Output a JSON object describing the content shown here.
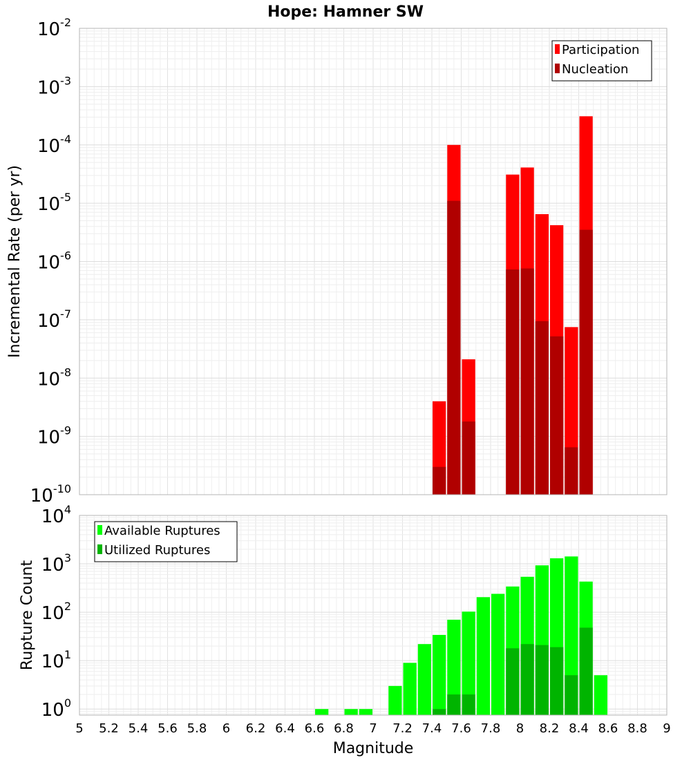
{
  "title": "Hope: Hamner SW",
  "xlabel": "Magnitude",
  "x_ticks": [
    "5",
    "5.2",
    "5.4",
    "5.6",
    "5.8",
    "6",
    "6.2",
    "6.4",
    "6.6",
    "6.8",
    "7",
    "7.2",
    "7.4",
    "7.6",
    "7.8",
    "8",
    "8.2",
    "8.4",
    "8.6",
    "8.8",
    "9"
  ],
  "chart_data": [
    {
      "type": "bar",
      "ylabel": "Incremental Rate (per yr)",
      "yscale": "log",
      "ylim": [
        1e-10,
        0.01
      ],
      "xlim": [
        5,
        9
      ],
      "y_tick_exponents": [
        "-10",
        "-9",
        "-8",
        "-7",
        "-6",
        "-5",
        "-4",
        "-3",
        "-2"
      ],
      "grid": true,
      "legend_position": "top-right",
      "bin_width": 0.1,
      "series": [
        {
          "name": "Participation",
          "color": "#ff0000",
          "x": [
            7.45,
            7.55,
            7.65,
            7.95,
            8.05,
            8.15,
            8.25,
            8.35,
            8.45
          ],
          "values": [
            4e-09,
            0.0001,
            2.1e-08,
            3.1e-05,
            4.1e-05,
            6.5e-06,
            4.2e-06,
            7.5e-08,
            0.00031
          ]
        },
        {
          "name": "Nucleation",
          "color": "#b00000",
          "x": [
            7.45,
            7.55,
            7.65,
            7.95,
            8.05,
            8.15,
            8.25,
            8.35,
            8.45
          ],
          "values": [
            3e-10,
            1.1e-05,
            1.8e-09,
            7.3e-07,
            7.6e-07,
            9.5e-08,
            5.2e-08,
            6.5e-10,
            3.5e-06
          ]
        }
      ]
    },
    {
      "type": "bar",
      "ylabel": "Rupture Count",
      "yscale": "log",
      "ylim": [
        0.75,
        10000
      ],
      "xlim": [
        5,
        9
      ],
      "y_tick_exponents": [
        "0",
        "1",
        "2",
        "3",
        "4"
      ],
      "grid": true,
      "legend_position": "top-left",
      "bin_width": 0.1,
      "series": [
        {
          "name": "Available Ruptures",
          "color": "#00ff00",
          "x": [
            6.65,
            6.85,
            6.95,
            7.15,
            7.25,
            7.35,
            7.45,
            7.55,
            7.65,
            7.75,
            7.85,
            7.95,
            8.05,
            8.15,
            8.25,
            8.35,
            8.45,
            8.55
          ],
          "values": [
            1,
            1,
            1,
            3,
            9,
            22,
            34,
            70,
            103,
            205,
            240,
            340,
            540,
            930,
            1300,
            1420,
            430,
            5
          ]
        },
        {
          "name": "Utilized Ruptures",
          "color": "#00b400",
          "x": [
            7.45,
            7.55,
            7.65,
            7.95,
            8.05,
            8.15,
            8.25,
            8.35,
            8.45
          ],
          "values": [
            1,
            2,
            2,
            18,
            22,
            21,
            19,
            5,
            48
          ]
        }
      ]
    }
  ]
}
